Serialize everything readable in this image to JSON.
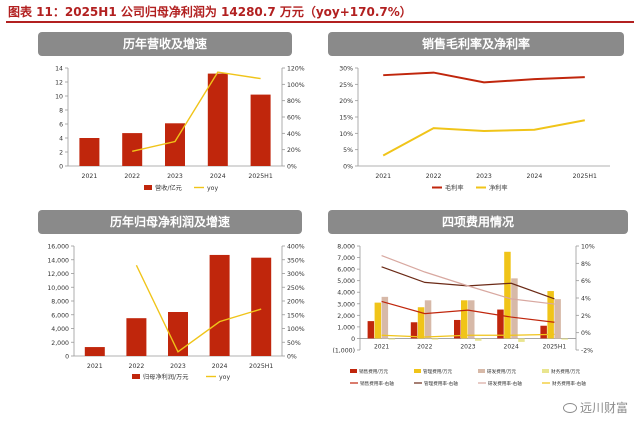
{
  "figure_title": "图表 11：2025H1 公司归母净利润为 14280.7 万元（yoy+170.7%）",
  "watermark": "远川财富",
  "colors": {
    "bar": "#c0260c",
    "line": "#f0c419",
    "line2": "#c8521e",
    "panel_header": "#8a8a8a",
    "axis": "#999999",
    "text": "#333333"
  },
  "chart_data": [
    {
      "type": "bar+line",
      "title": "历年营收及增速",
      "categories": [
        "2021",
        "2022",
        "2023",
        "2024",
        "2025H1"
      ],
      "series": [
        {
          "name": "营收/亿元",
          "type": "bar",
          "axis": "left",
          "values": [
            4.0,
            4.7,
            6.1,
            13.2,
            10.2
          ]
        },
        {
          "name": "yoy",
          "type": "line",
          "axis": "right",
          "values": [
            null,
            18,
            30,
            115,
            107
          ]
        }
      ],
      "ylim_left": [
        0,
        14
      ],
      "yticks_left": [
        "0",
        "2",
        "4",
        "6",
        "8",
        "10",
        "12",
        "14"
      ],
      "ylim_right": [
        0,
        120
      ],
      "yticks_right": [
        "0%",
        "20%",
        "40%",
        "60%",
        "80%",
        "100%",
        "120%"
      ]
    },
    {
      "type": "line",
      "title": "销售毛利率及净利率",
      "categories": [
        "2021",
        "2022",
        "2023",
        "2024",
        "2025H1"
      ],
      "series": [
        {
          "name": "毛利率",
          "values": [
            27.8,
            28.6,
            25.6,
            26.6,
            27.2
          ]
        },
        {
          "name": "净利率",
          "values": [
            3.2,
            11.6,
            10.7,
            11.1,
            14.0
          ]
        }
      ],
      "ylim": [
        0,
        30
      ],
      "yticks": [
        "0%",
        "5%",
        "10%",
        "15%",
        "20%",
        "25%",
        "30%"
      ]
    },
    {
      "type": "bar+line",
      "title": "历年归母净利润及增速",
      "categories": [
        "2021",
        "2022",
        "2023",
        "2024",
        "2025H1"
      ],
      "series": [
        {
          "name": "归母净利润/万元",
          "type": "bar",
          "axis": "left",
          "values": [
            1300,
            5500,
            6400,
            14700,
            14300
          ]
        },
        {
          "name": "yoy",
          "type": "line",
          "axis": "right",
          "values": [
            null,
            330,
            15,
            125,
            170.7
          ]
        }
      ],
      "ylim_left": [
        0,
        16000
      ],
      "yticks_left": [
        "0",
        "2,000",
        "4,000",
        "6,000",
        "8,000",
        "10,000",
        "12,000",
        "14,000",
        "16,000"
      ],
      "ylim_right": [
        0,
        400
      ],
      "yticks_right": [
        "0%",
        "50%",
        "100%",
        "150%",
        "200%",
        "250%",
        "300%",
        "350%",
        "400%"
      ]
    },
    {
      "type": "bar+line",
      "title": "四项费用情况",
      "categories": [
        "2021",
        "2022",
        "2023",
        "2024",
        "2025H1"
      ],
      "series": [
        {
          "name": "销售费用/万元",
          "type": "bar",
          "axis": "left",
          "color": "#c0260c",
          "values": [
            1500,
            1400,
            1600,
            2500,
            1100
          ]
        },
        {
          "name": "管理费用/万元",
          "type": "bar",
          "axis": "left",
          "color": "#f0c419",
          "values": [
            3100,
            2700,
            3300,
            7500,
            4100
          ]
        },
        {
          "name": "研发费用/万元",
          "type": "bar",
          "axis": "left",
          "color": "#d7b9a8",
          "values": [
            3600,
            3300,
            3300,
            5200,
            3400
          ]
        },
        {
          "name": "财务费用/万元",
          "type": "bar",
          "axis": "left",
          "color": "#e9e58f",
          "values": [
            -100,
            -100,
            -200,
            -300,
            -100
          ]
        },
        {
          "name": "销售费用率-右轴",
          "type": "line",
          "axis": "right",
          "color": "#c0260c",
          "values": [
            3.6,
            2.2,
            2.6,
            1.8,
            1.2
          ]
        },
        {
          "name": "管理费用率-右轴",
          "type": "line",
          "axis": "right",
          "color": "#6b2a16",
          "values": [
            7.6,
            5.8,
            5.4,
            5.7,
            3.9
          ]
        },
        {
          "name": "研发费用率-右轴",
          "type": "line",
          "axis": "right",
          "color": "#d8a8a0",
          "values": [
            8.9,
            7.0,
            5.4,
            3.9,
            3.3
          ]
        },
        {
          "name": "财务费用率-右轴",
          "type": "line",
          "axis": "right",
          "color": "#f0c419",
          "values": [
            -0.3,
            -0.5,
            -0.3,
            -0.3,
            -0.2
          ]
        }
      ],
      "ylim_left": [
        -1000,
        8000
      ],
      "yticks_left": [
        "(1,000)",
        "0",
        "1,000",
        "2,000",
        "3,000",
        "4,000",
        "5,000",
        "6,000",
        "7,000",
        "8,000"
      ],
      "ylim_right": [
        -2,
        10
      ],
      "yticks_right": [
        "-2%",
        "0%",
        "2%",
        "4%",
        "6%",
        "8%",
        "10%"
      ]
    }
  ]
}
